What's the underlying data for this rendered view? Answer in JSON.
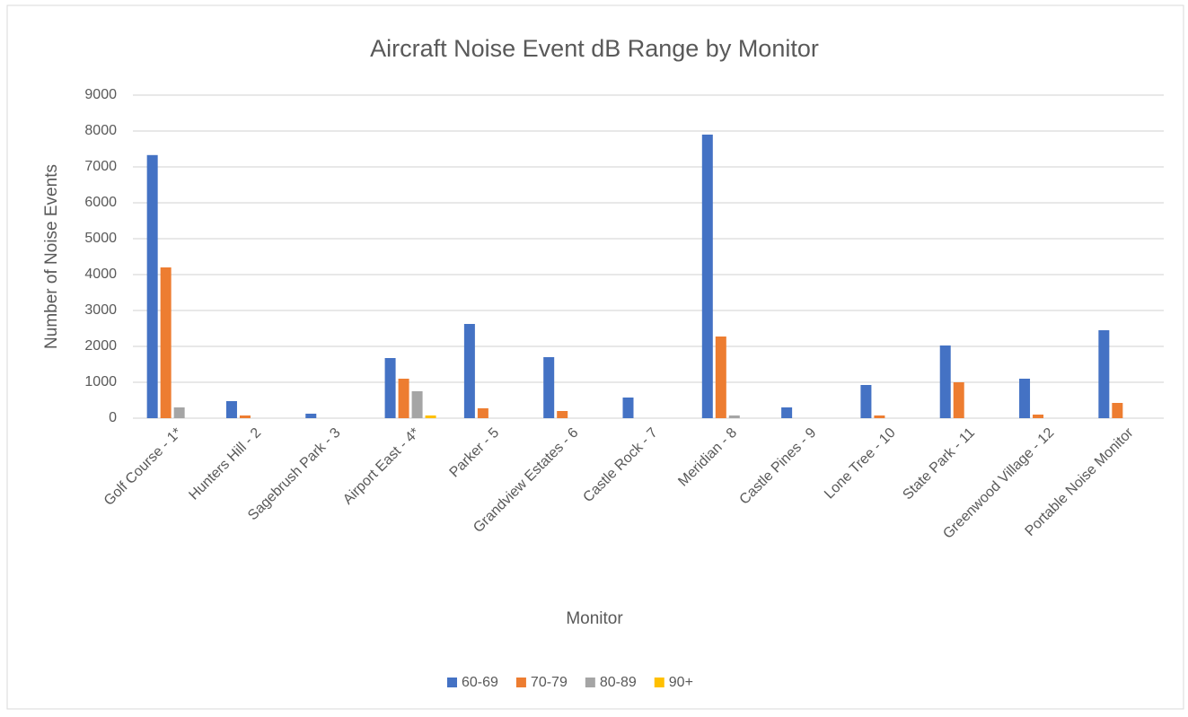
{
  "chart_data": {
    "type": "bar",
    "title": "Aircraft Noise Event dB Range by Monitor",
    "x_label": "Monitor",
    "y_label": "Number of Noise Events",
    "categories": [
      "Golf Course - 1*",
      "Hunters Hill - 2",
      "Sagebrush Park - 3",
      "Airport East - 4*",
      "Parker - 5",
      "Grandview Estates - 6",
      "Castle Rock - 7",
      "Meridian - 8",
      "Castle Pines - 9",
      "Lone Tree - 10",
      "State Park - 11",
      "Greenwood Village - 12",
      "Portable Noise Monitor"
    ],
    "series": [
      {
        "name": "60-69",
        "color": "#4472c4",
        "values": [
          7330,
          475,
          125,
          1675,
          2625,
          1700,
          575,
          7900,
          300,
          925,
          2025,
          1100,
          2450
        ]
      },
      {
        "name": "70-79",
        "color": "#ed7d31",
        "values": [
          4200,
          75,
          0,
          1100,
          275,
          200,
          0,
          2275,
          0,
          75,
          1000,
          100,
          425
        ]
      },
      {
        "name": "80-89",
        "color": "#a5a5a5",
        "values": [
          300,
          0,
          0,
          750,
          0,
          0,
          0,
          75,
          0,
          0,
          0,
          0,
          0
        ]
      },
      {
        "name": "90+",
        "color": "#ffc000",
        "values": [
          0,
          0,
          0,
          75,
          0,
          0,
          0,
          0,
          0,
          0,
          0,
          0,
          0
        ]
      }
    ],
    "ylim": [
      0,
      9000
    ],
    "yticks": [
      0,
      1000,
      2000,
      3000,
      4000,
      5000,
      6000,
      7000,
      8000,
      9000
    ],
    "grid": true,
    "legend": "bottom"
  }
}
